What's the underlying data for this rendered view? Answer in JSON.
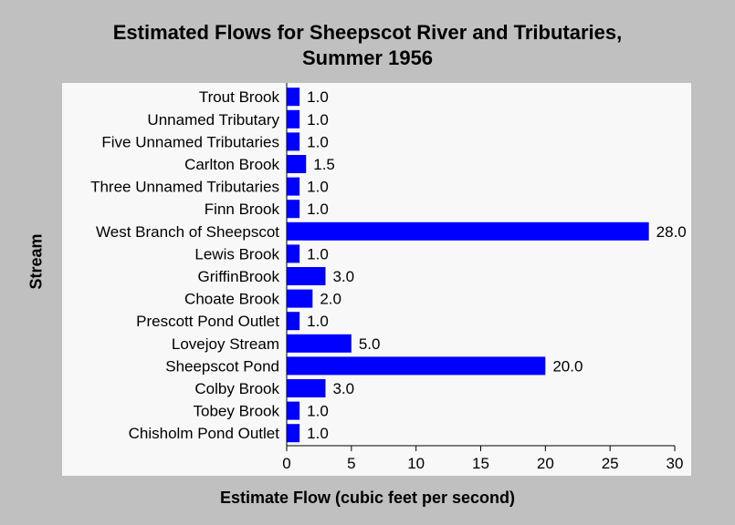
{
  "chart_data": {
    "type": "bar",
    "orientation": "horizontal",
    "title_line1": "Estimated Flows for Sheepscot River and Tributaries,",
    "title_line2": "Summer 1956",
    "xlabel": "Estimate Flow (cubic feet per second)",
    "ylabel": "Stream",
    "xlim": [
      0,
      30
    ],
    "xticks": [
      "0",
      "5",
      "10",
      "15",
      "20",
      "25",
      "30"
    ],
    "categories": [
      "Trout Brook",
      "Unnamed Tributary",
      "Five Unnamed Tributaries",
      "Carlton Brook",
      "Three Unnamed Tributaries",
      "Finn Brook",
      "West Branch of Sheepscot",
      "Lewis Brook",
      "GriffinBrook",
      "Choate Brook",
      "Prescott Pond Outlet",
      "Lovejoy Stream",
      "Sheepscot Pond",
      "Colby Brook",
      "Tobey Brook",
      "Chisholm Pond Outlet"
    ],
    "values": [
      1.0,
      1.0,
      1.0,
      1.5,
      1.0,
      1.0,
      28.0,
      1.0,
      3.0,
      2.0,
      1.0,
      5.0,
      20.0,
      3.0,
      1.0,
      1.0
    ],
    "value_labels": [
      "1.0",
      "1.0",
      "1.0",
      "1.5",
      "1.0",
      "1.0",
      "28.0",
      "1.0",
      "3.0",
      "2.0",
      "1.0",
      "5.0",
      "20.0",
      "3.0",
      "1.0",
      "1.0"
    ],
    "grid": false,
    "legend": "none",
    "bar_color": "#0000ff",
    "panel_color": "#f8f8f8",
    "background_color": "#c0c0c0"
  }
}
